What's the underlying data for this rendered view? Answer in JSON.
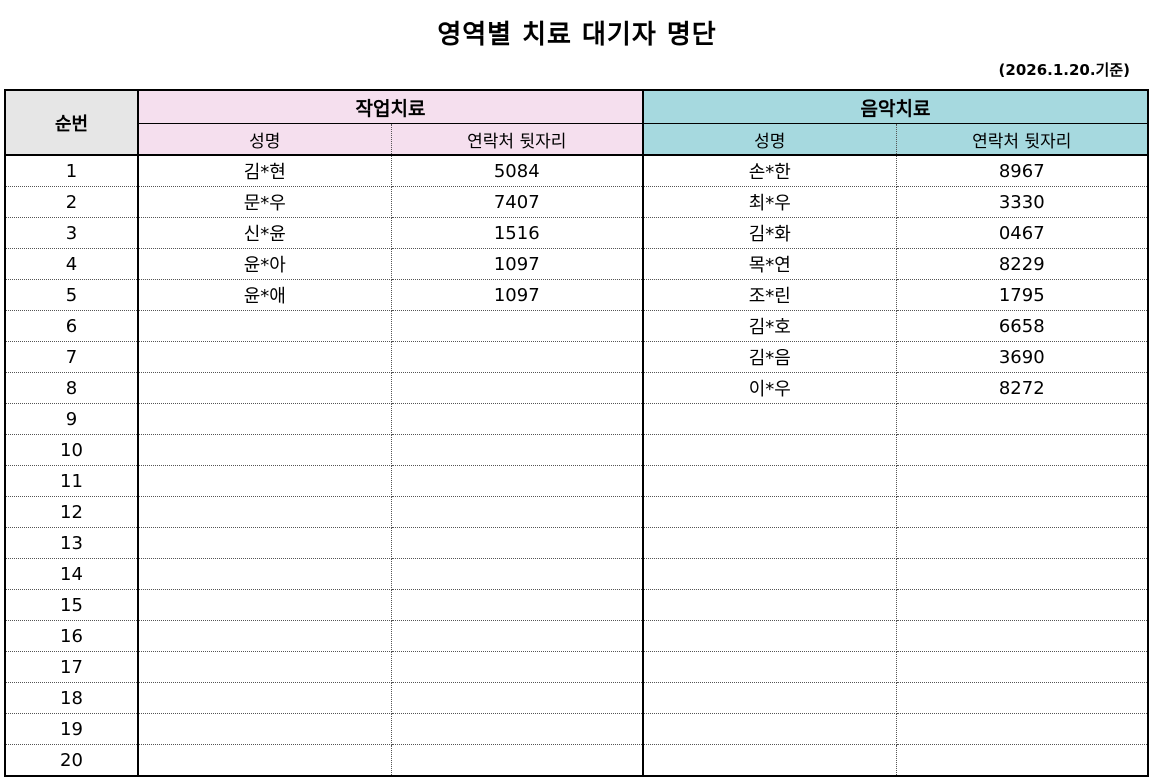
{
  "title": "영역별 치료 대기자 명단",
  "date_note": "(2026.1.20.기준)",
  "headers": {
    "number": "순번",
    "group1": "작업치료",
    "group2": "음악치료",
    "name": "성명",
    "phone": "연락처 뒷자리"
  },
  "colors": {
    "occupational": "#f5dfee",
    "music": "#a6d9df",
    "number_header": "#e6e6e6"
  },
  "rows": [
    {
      "n": "1",
      "ot_name": "김*현",
      "ot_phone": "5084",
      "mu_name": "손*한",
      "mu_phone": "8967"
    },
    {
      "n": "2",
      "ot_name": "문*우",
      "ot_phone": "7407",
      "mu_name": "최*우",
      "mu_phone": "3330"
    },
    {
      "n": "3",
      "ot_name": "신*윤",
      "ot_phone": "1516",
      "mu_name": "김*화",
      "mu_phone": "0467"
    },
    {
      "n": "4",
      "ot_name": "윤*아",
      "ot_phone": "1097",
      "mu_name": "목*연",
      "mu_phone": "8229"
    },
    {
      "n": "5",
      "ot_name": "윤*애",
      "ot_phone": "1097",
      "mu_name": "조*린",
      "mu_phone": "1795"
    },
    {
      "n": "6",
      "ot_name": "",
      "ot_phone": "",
      "mu_name": "김*호",
      "mu_phone": "6658"
    },
    {
      "n": "7",
      "ot_name": "",
      "ot_phone": "",
      "mu_name": "김*음",
      "mu_phone": "3690"
    },
    {
      "n": "8",
      "ot_name": "",
      "ot_phone": "",
      "mu_name": "이*우",
      "mu_phone": "8272"
    },
    {
      "n": "9",
      "ot_name": "",
      "ot_phone": "",
      "mu_name": "",
      "mu_phone": ""
    },
    {
      "n": "10",
      "ot_name": "",
      "ot_phone": "",
      "mu_name": "",
      "mu_phone": ""
    },
    {
      "n": "11",
      "ot_name": "",
      "ot_phone": "",
      "mu_name": "",
      "mu_phone": ""
    },
    {
      "n": "12",
      "ot_name": "",
      "ot_phone": "",
      "mu_name": "",
      "mu_phone": ""
    },
    {
      "n": "13",
      "ot_name": "",
      "ot_phone": "",
      "mu_name": "",
      "mu_phone": ""
    },
    {
      "n": "14",
      "ot_name": "",
      "ot_phone": "",
      "mu_name": "",
      "mu_phone": ""
    },
    {
      "n": "15",
      "ot_name": "",
      "ot_phone": "",
      "mu_name": "",
      "mu_phone": ""
    },
    {
      "n": "16",
      "ot_name": "",
      "ot_phone": "",
      "mu_name": "",
      "mu_phone": ""
    },
    {
      "n": "17",
      "ot_name": "",
      "ot_phone": "",
      "mu_name": "",
      "mu_phone": ""
    },
    {
      "n": "18",
      "ot_name": "",
      "ot_phone": "",
      "mu_name": "",
      "mu_phone": ""
    },
    {
      "n": "19",
      "ot_name": "",
      "ot_phone": "",
      "mu_name": "",
      "mu_phone": ""
    },
    {
      "n": "20",
      "ot_name": "",
      "ot_phone": "",
      "mu_name": "",
      "mu_phone": ""
    }
  ]
}
